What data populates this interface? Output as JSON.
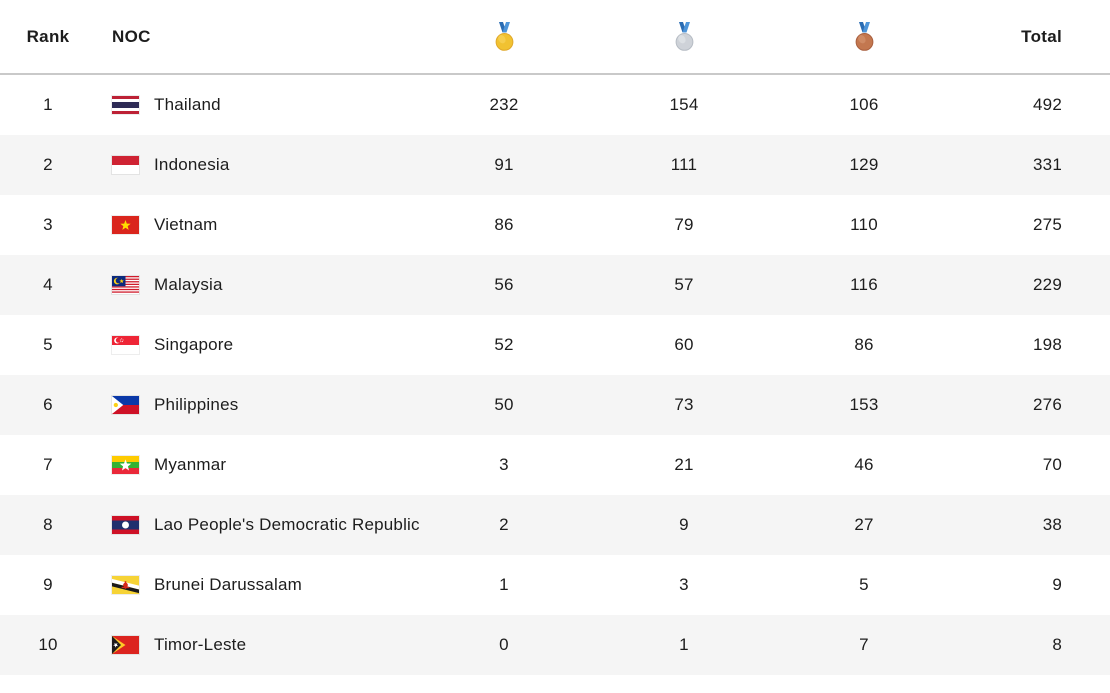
{
  "header": {
    "rank": "Rank",
    "noc": "NOC",
    "total": "Total"
  },
  "medal_icons": [
    {
      "name": "gold-medal-icon",
      "main": "#f1c231",
      "edge": "#e0a82a",
      "highlight": "#f9d966"
    },
    {
      "name": "silver-medal-icon",
      "main": "#ced2d8",
      "edge": "#b6bcc4",
      "highlight": "#e8ebee"
    },
    {
      "name": "bronze-medal-icon",
      "main": "#c3774f",
      "edge": "#a95f3e",
      "highlight": "#d89a77"
    }
  ],
  "ribbon": {
    "left": "#2a6cb3",
    "right": "#4e95d9"
  },
  "rows": [
    {
      "rank": "1",
      "noc": "Thailand",
      "flag": "th",
      "gold": "232",
      "silver": "154",
      "bronze": "106",
      "total": "492"
    },
    {
      "rank": "2",
      "noc": "Indonesia",
      "flag": "id",
      "gold": "91",
      "silver": "111",
      "bronze": "129",
      "total": "331"
    },
    {
      "rank": "3",
      "noc": "Vietnam",
      "flag": "vn",
      "gold": "86",
      "silver": "79",
      "bronze": "110",
      "total": "275"
    },
    {
      "rank": "4",
      "noc": "Malaysia",
      "flag": "my",
      "gold": "56",
      "silver": "57",
      "bronze": "116",
      "total": "229"
    },
    {
      "rank": "5",
      "noc": "Singapore",
      "flag": "sg",
      "gold": "52",
      "silver": "60",
      "bronze": "86",
      "total": "198"
    },
    {
      "rank": "6",
      "noc": "Philippines",
      "flag": "ph",
      "gold": "50",
      "silver": "73",
      "bronze": "153",
      "total": "276"
    },
    {
      "rank": "7",
      "noc": "Myanmar",
      "flag": "mm",
      "gold": "3",
      "silver": "21",
      "bronze": "46",
      "total": "70"
    },
    {
      "rank": "8",
      "noc": "Lao People's Democratic Republic",
      "flag": "la",
      "gold": "2",
      "silver": "9",
      "bronze": "27",
      "total": "38"
    },
    {
      "rank": "9",
      "noc": "Brunei Darussalam",
      "flag": "bn",
      "gold": "1",
      "silver": "3",
      "bronze": "5",
      "total": "9"
    },
    {
      "rank": "10",
      "noc": "Timor-Leste",
      "flag": "tl",
      "gold": "0",
      "silver": "1",
      "bronze": "7",
      "total": "8"
    }
  ],
  "colors": {
    "background": "#ffffff",
    "row_stripe": "#f5f5f5",
    "header_border": "#c9c9c9",
    "text": "#1d1d1d"
  }
}
